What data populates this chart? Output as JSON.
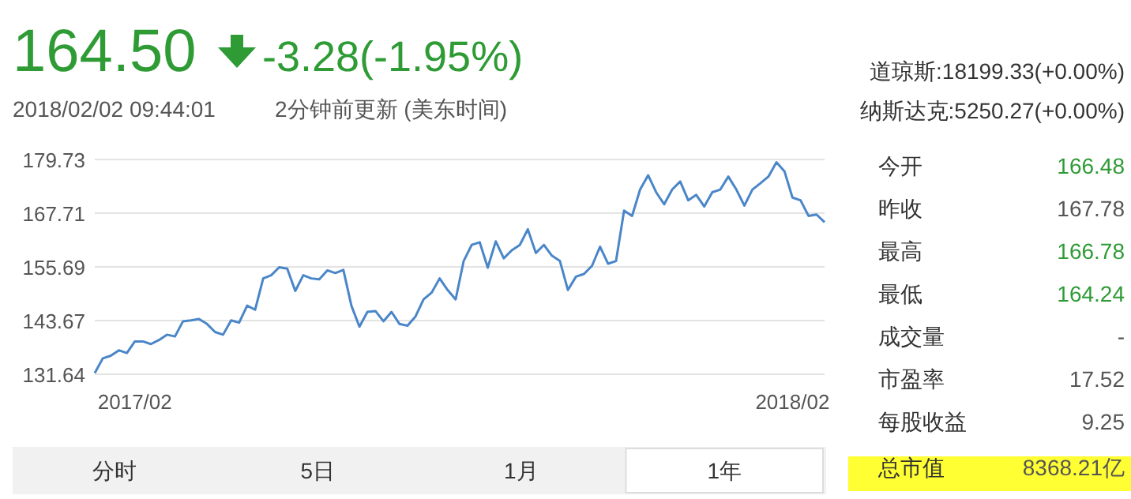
{
  "chart_data": {
    "type": "line",
    "title": "164.50",
    "subtitle": "2018/02/02 09:44:01",
    "annotations": [
      "-3.28(-1.95%)",
      "2分钟前更新 (美东时间)",
      "道琼斯:18199.33(+0.00%)",
      "纳斯达克:5250.27(+0.00%)",
      "今开",
      "166.48",
      "昨收",
      "167.78",
      "最高",
      "166.78",
      "最低",
      "164.24",
      "成交量",
      "-",
      "市盈率",
      "17.52",
      "每股收益",
      "9.25",
      "总市值",
      "8368.21亿",
      "分时",
      "5日",
      "1月",
      "1年"
    ],
    "categories": [
      null,
      null,
      null,
      null,
      null,
      "2017/02",
      null,
      null,
      null,
      null,
      null,
      null,
      null,
      null,
      null,
      null,
      null,
      null,
      null,
      null,
      null,
      null,
      null,
      null,
      null,
      null,
      null,
      null,
      null,
      null,
      null,
      null,
      null,
      null,
      null,
      null,
      null,
      null,
      null,
      null,
      null,
      null,
      null,
      null,
      null,
      null,
      null,
      null,
      null,
      null,
      null,
      null,
      null,
      null,
      null,
      null,
      null,
      null,
      null,
      null,
      null,
      null,
      null,
      null,
      null,
      null,
      null,
      null,
      null,
      null,
      null,
      null,
      null,
      null,
      null,
      null,
      null,
      null,
      null,
      null,
      null,
      null,
      null,
      null,
      null,
      null,
      null,
      "2018/02",
      null,
      null,
      null,
      null
    ],
    "series": [
      {
        "color": "#4a86c8",
        "values": [
          131.9,
          135.2,
          135.8,
          137.0,
          136.4,
          139.0,
          139.0,
          138.4,
          139.3,
          140.5,
          140.1,
          143.5,
          143.7,
          144.0,
          142.9,
          141.1,
          140.5,
          143.7,
          143.2,
          147.0,
          146.1,
          153.1,
          153.8,
          155.6,
          155.3,
          150.3,
          153.8,
          153.1,
          152.9,
          154.9,
          154.3,
          155.0,
          147.0,
          142.3,
          145.6,
          145.8,
          143.5,
          145.6,
          142.9,
          142.5,
          144.6,
          148.4,
          149.9,
          153.1,
          150.5,
          148.4,
          157.0,
          160.6,
          161.2,
          155.5,
          161.4,
          157.6,
          159.4,
          160.6,
          164.1,
          158.8,
          160.6,
          158.2,
          157.0,
          150.5,
          153.5,
          154.1,
          155.9,
          160.2,
          156.4,
          157.0,
          168.3,
          167.1,
          173.0,
          176.2,
          172.4,
          169.7,
          173.0,
          174.8,
          170.6,
          171.8,
          169.2,
          172.4,
          173.0,
          175.9,
          173.0,
          169.4,
          173.0,
          174.4,
          175.9,
          179.1,
          177.1,
          171.2,
          170.6,
          167.1,
          167.4,
          165.7
        ]
      }
    ],
    "ylim": [
      131.64,
      179.73
    ],
    "yticks": [
      131.64,
      143.67,
      155.69,
      167.71,
      179.73
    ],
    "grid": "y",
    "marker": "none",
    "line_style": "solid"
  }
}
